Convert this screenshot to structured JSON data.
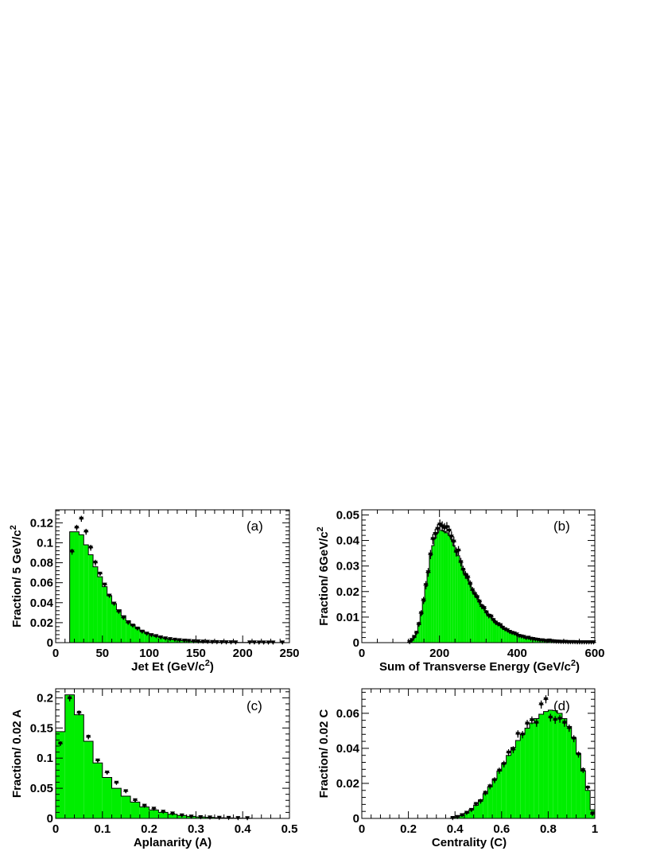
{
  "colors": {
    "histogram_fill": "#00ee00",
    "outline": "#000000",
    "marker": "#000000"
  },
  "chart_data": [
    {
      "id": "a",
      "type": "histogram",
      "panel_label": "(a)",
      "xlabel": "Jet Et (GeV/c",
      "xlabel_sup": "2",
      "xlabel_tail": ")",
      "ylabel": "Fraction/ 5 GeV/c",
      "ylabel_sup": "2",
      "xlim": [
        0,
        250
      ],
      "ylim": [
        0,
        0.133
      ],
      "xticks": [
        0,
        50,
        100,
        150,
        200,
        250
      ],
      "xtick_labels": [
        "0",
        "50",
        "100",
        "150",
        "200",
        "250"
      ],
      "yticks": [
        0,
        0.02,
        0.04,
        0.06,
        0.08,
        0.1,
        0.12
      ],
      "ytick_labels": [
        "0",
        "0.02",
        "0.04",
        "0.06",
        "0.08",
        "0.1",
        "0.12"
      ],
      "hist_edges": [
        15,
        20,
        25,
        30,
        35,
        40,
        45,
        50,
        55,
        60,
        65,
        70,
        75,
        80,
        85,
        90,
        95,
        100,
        105,
        110,
        115,
        120,
        125,
        130,
        135,
        140,
        145,
        150,
        155,
        160,
        165,
        170,
        175,
        180,
        185,
        190,
        195,
        200,
        205,
        210,
        215,
        220,
        225,
        230,
        235,
        240
      ],
      "hist_values": [
        0.111,
        0.111,
        0.108,
        0.098,
        0.088,
        0.076,
        0.066,
        0.056,
        0.047,
        0.039,
        0.033,
        0.027,
        0.022,
        0.018,
        0.015,
        0.012,
        0.0095,
        0.0078,
        0.0062,
        0.0051,
        0.0041,
        0.0034,
        0.0028,
        0.0023,
        0.0019,
        0.0016,
        0.0013,
        0.0011,
        0.0009,
        0.0008,
        0.0006,
        0.0005,
        0.0005,
        0.0004,
        0.0003,
        0.0003,
        0.0002,
        0.0002,
        0.0002,
        0.0001,
        0.0001,
        0.0001,
        0.0001,
        0.0001,
        0.0001
      ],
      "points_x": [
        17.5,
        22.5,
        27.5,
        32.5,
        37.5,
        42.5,
        47.5,
        52.5,
        57.5,
        62.5,
        67.5,
        72.5,
        77.5,
        82.5,
        87.5,
        92.5,
        97.5,
        102.5,
        107.5,
        112.5,
        117.5,
        122.5,
        127.5,
        132.5,
        137.5,
        142.5,
        147.5,
        152.5,
        157.5,
        162.5,
        167.5,
        172.5,
        177.5,
        182.5,
        187.5,
        192.5,
        207.5,
        212.5,
        217.5,
        222.5,
        227.5,
        232.5,
        242.5
      ],
      "points_y": [
        0.091,
        0.115,
        0.124,
        0.111,
        0.095,
        0.08,
        0.069,
        0.058,
        0.047,
        0.039,
        0.031,
        0.025,
        0.02,
        0.017,
        0.014,
        0.011,
        0.009,
        0.0075,
        0.0065,
        0.0052,
        0.0042,
        0.0035,
        0.0029,
        0.0024,
        0.002,
        0.0017,
        0.0014,
        0.0012,
        0.001,
        0.0008,
        0.0006,
        0.0005,
        0.0004,
        0.0003,
        0.0003,
        0.0002,
        0.0002,
        0.0002,
        0.0001,
        0.0001,
        0.0001,
        0.0001,
        0.0001
      ],
      "points_err": [
        0.003,
        0.003,
        0.003,
        0.003,
        0.003,
        0.003,
        0.002,
        0.002,
        0.002,
        0.002,
        0.002,
        0.002,
        0.002,
        0.001,
        0.001,
        0.001,
        0.001,
        0.001,
        0.001,
        0.001,
        0.001,
        0.001,
        0.001,
        0.001,
        0.001,
        0.001,
        0.001,
        0.001,
        0.001,
        0.001,
        0.001,
        0.001,
        0.001,
        0.001,
        0.001,
        0.001,
        0.001,
        0.001,
        0.001,
        0.001,
        0.001,
        0.001,
        0.001
      ]
    },
    {
      "id": "b",
      "type": "histogram",
      "panel_label": "(b)",
      "xlabel": "Sum of Transverse Energy (GeV/c",
      "xlabel_sup": "2",
      "xlabel_tail": ")",
      "ylabel": "Fraction/ 6GeV/c",
      "ylabel_sup": "2",
      "xlim": [
        0,
        600
      ],
      "ylim": [
        0,
        0.052
      ],
      "xticks": [
        0,
        200,
        400,
        600
      ],
      "xtick_labels": [
        "0",
        "200",
        "400",
        "600"
      ],
      "yticks": [
        0,
        0.01,
        0.02,
        0.03,
        0.04,
        0.05
      ],
      "ytick_labels": [
        "0",
        "0.01",
        "0.02",
        "0.03",
        "0.04",
        "0.05"
      ],
      "hist_edges": [
        120,
        126,
        132,
        138,
        144,
        150,
        156,
        162,
        168,
        174,
        180,
        186,
        192,
        198,
        204,
        210,
        216,
        222,
        228,
        234,
        240,
        246,
        252,
        258,
        264,
        270,
        276,
        282,
        288,
        294,
        300,
        306,
        312,
        318,
        324,
        330,
        336,
        342,
        348,
        354,
        360,
        366,
        372,
        378,
        384,
        390,
        396,
        402,
        408,
        414,
        420,
        426,
        432,
        438,
        444,
        450,
        456,
        462,
        468,
        474,
        480,
        486,
        492,
        498,
        504,
        510,
        516,
        522,
        528,
        534,
        540,
        546,
        552,
        558,
        564,
        570,
        576,
        582,
        588,
        594,
        600
      ],
      "hist_values": [
        0.0003,
        0.001,
        0.002,
        0.004,
        0.007,
        0.011,
        0.016,
        0.022,
        0.028,
        0.034,
        0.038,
        0.041,
        0.043,
        0.044,
        0.044,
        0.0435,
        0.043,
        0.042,
        0.0405,
        0.038,
        0.036,
        0.034,
        0.0315,
        0.029,
        0.027,
        0.025,
        0.0228,
        0.021,
        0.0192,
        0.0176,
        0.016,
        0.0146,
        0.0133,
        0.0121,
        0.011,
        0.01,
        0.009,
        0.0082,
        0.0074,
        0.0067,
        0.006,
        0.0054,
        0.0049,
        0.0044,
        0.0039,
        0.0035,
        0.0031,
        0.0028,
        0.0025,
        0.0022,
        0.002,
        0.0018,
        0.0016,
        0.0014,
        0.0013,
        0.0012,
        0.001,
        0.0009,
        0.0008,
        0.0007,
        0.0007,
        0.0006,
        0.0005,
        0.0005,
        0.0004,
        0.0004,
        0.0003,
        0.0003,
        0.0003,
        0.0002,
        0.0002,
        0.0002,
        0.0002,
        0.0001,
        0.0001,
        0.0001,
        0.0001,
        0.0001,
        0.0001,
        0.0001
      ],
      "points_x": [
        123,
        129,
        135,
        141,
        147,
        153,
        159,
        165,
        171,
        177,
        183,
        189,
        195,
        201,
        207,
        213,
        219,
        225,
        231,
        237,
        243,
        249,
        255,
        261,
        267,
        273,
        279,
        285,
        291,
        297,
        303,
        309,
        315,
        321,
        327,
        333,
        339,
        345,
        351,
        357,
        363,
        369,
        375,
        381,
        387,
        393,
        399,
        405,
        411,
        417,
        423,
        429,
        435,
        441,
        447,
        453,
        459,
        465,
        471,
        477,
        483,
        489,
        495,
        501,
        507,
        513,
        519,
        525,
        531,
        537,
        543,
        549,
        555,
        561,
        567,
        573,
        579,
        585,
        591,
        597
      ],
      "points_y": [
        0.0002,
        0.001,
        0.0022,
        0.0038,
        0.0072,
        0.0115,
        0.0165,
        0.0225,
        0.0275,
        0.0345,
        0.0405,
        0.0425,
        0.0445,
        0.0462,
        0.0455,
        0.0448,
        0.0452,
        0.0438,
        0.0415,
        0.0395,
        0.0355,
        0.036,
        0.0315,
        0.0285,
        0.0265,
        0.0255,
        0.023,
        0.0205,
        0.019,
        0.0178,
        0.016,
        0.0142,
        0.0135,
        0.0118,
        0.0105,
        0.0102,
        0.0088,
        0.0078,
        0.0072,
        0.0068,
        0.0058,
        0.0052,
        0.0048,
        0.0042,
        0.0038,
        0.0036,
        0.0032,
        0.0026,
        0.0024,
        0.0022,
        0.0018,
        0.0019,
        0.0015,
        0.0014,
        0.0012,
        0.0011,
        0.0009,
        0.0009,
        0.0007,
        0.0006,
        0.0008,
        0.0006,
        0.0005,
        0.0004,
        0.0004,
        0.0003,
        0.0003,
        0.0003,
        0.0002,
        0.0002,
        0.0002,
        0.0002,
        0.0001,
        0.0001,
        0.0001,
        0.0001,
        0.0001,
        0.0001,
        0.0001,
        0.0001
      ],
      "points_err": [
        0.0003,
        0.0005,
        0.0006,
        0.0008,
        0.001,
        0.0012,
        0.0014,
        0.0016,
        0.0017,
        0.0018,
        0.002,
        0.002,
        0.002,
        0.002,
        0.002,
        0.002,
        0.002,
        0.002,
        0.002,
        0.002,
        0.0018,
        0.0018,
        0.0017,
        0.0016,
        0.0015,
        0.0015,
        0.0014,
        0.0013,
        0.0013,
        0.0012,
        0.0012,
        0.0011,
        0.0011,
        0.001,
        0.001,
        0.001,
        0.0009,
        0.0009,
        0.0008,
        0.0008,
        0.0008,
        0.0007,
        0.0007,
        0.0007,
        0.0006,
        0.0006,
        0.0006,
        0.0005,
        0.0005,
        0.0005,
        0.0005,
        0.0005,
        0.0004,
        0.0004,
        0.0004,
        0.0004,
        0.0004,
        0.0004,
        0.0003,
        0.0003,
        0.0003,
        0.0003,
        0.0003,
        0.0003,
        0.0003,
        0.0003,
        0.0003,
        0.0003,
        0.0003,
        0.0003,
        0.0003,
        0.0003,
        0.0003,
        0.0003,
        0.0003,
        0.0003,
        0.0003,
        0.0003,
        0.0003,
        0.0003
      ]
    },
    {
      "id": "c",
      "type": "histogram",
      "panel_label": "(c)",
      "xlabel": "Aplanarity (A)",
      "xlabel_sup": "",
      "xlabel_tail": "",
      "ylabel": "Fraction/ 0.02 A",
      "ylabel_sup": "",
      "xlim": [
        0,
        0.5
      ],
      "ylim": [
        0,
        0.215
      ],
      "xticks": [
        0,
        0.1,
        0.2,
        0.3,
        0.4,
        0.5
      ],
      "xtick_labels": [
        "0",
        "0.1",
        "0.2",
        "0.3",
        "0.4",
        "0.5"
      ],
      "yticks": [
        0,
        0.05,
        0.1,
        0.15,
        0.2
      ],
      "ytick_labels": [
        "0",
        "0.05",
        "0.1",
        "0.15",
        "0.2"
      ],
      "hist_edges": [
        0,
        0.02,
        0.04,
        0.06,
        0.08,
        0.1,
        0.12,
        0.14,
        0.16,
        0.18,
        0.2,
        0.22,
        0.24,
        0.26,
        0.28,
        0.3,
        0.32,
        0.34,
        0.36,
        0.38,
        0.4,
        0.42
      ],
      "hist_values": [
        0.144,
        0.205,
        0.172,
        0.128,
        0.092,
        0.068,
        0.05,
        0.037,
        0.027,
        0.019,
        0.014,
        0.01,
        0.007,
        0.005,
        0.0035,
        0.0025,
        0.0018,
        0.0012,
        0.0008,
        0.0005,
        0.0003
      ],
      "points_x": [
        0.01,
        0.03,
        0.05,
        0.07,
        0.09,
        0.11,
        0.13,
        0.15,
        0.17,
        0.19,
        0.21,
        0.23,
        0.25,
        0.27,
        0.29,
        0.31,
        0.33,
        0.35,
        0.37,
        0.39,
        0.41
      ],
      "points_y": [
        0.124,
        0.199,
        0.175,
        0.135,
        0.096,
        0.076,
        0.059,
        0.045,
        0.03,
        0.021,
        0.016,
        0.011,
        0.008,
        0.005,
        0.003,
        0.002,
        0.0015,
        0.001,
        0.0008,
        0.0005,
        0.0003
      ],
      "points_err": [
        0.004,
        0.005,
        0.004,
        0.004,
        0.003,
        0.003,
        0.003,
        0.002,
        0.002,
        0.002,
        0.001,
        0.001,
        0.001,
        0.001,
        0.001,
        0.001,
        0.001,
        0.001,
        0.001,
        0.001,
        0.001
      ]
    },
    {
      "id": "d",
      "type": "histogram",
      "panel_label": "(d)",
      "xlabel": "Centrality (C)",
      "xlabel_sup": "",
      "xlabel_tail": "",
      "ylabel": "Fraction/ 0.02 C",
      "ylabel_sup": "",
      "xlim": [
        0,
        1
      ],
      "ylim": [
        0,
        0.074
      ],
      "xticks": [
        0,
        0.2,
        0.4,
        0.6,
        0.8,
        1
      ],
      "xtick_labels": [
        "0",
        "0.2",
        "0.4",
        "0.6",
        "0.8",
        "1"
      ],
      "yticks": [
        0,
        0.02,
        0.04,
        0.06
      ],
      "ytick_labels": [
        "0",
        "0.02",
        "0.04",
        "0.06"
      ],
      "hist_edges": [
        0.38,
        0.4,
        0.42,
        0.44,
        0.46,
        0.48,
        0.5,
        0.52,
        0.54,
        0.56,
        0.58,
        0.6,
        0.62,
        0.64,
        0.66,
        0.68,
        0.7,
        0.72,
        0.74,
        0.76,
        0.78,
        0.8,
        0.82,
        0.84,
        0.86,
        0.88,
        0.9,
        0.92,
        0.94,
        0.96,
        0.98,
        1.0
      ],
      "hist_values": [
        0.0003,
        0.0008,
        0.0016,
        0.003,
        0.005,
        0.0075,
        0.0105,
        0.014,
        0.018,
        0.0225,
        0.027,
        0.0315,
        0.036,
        0.0405,
        0.0445,
        0.048,
        0.0515,
        0.0545,
        0.057,
        0.0595,
        0.061,
        0.0618,
        0.0615,
        0.06,
        0.057,
        0.0525,
        0.046,
        0.037,
        0.027,
        0.016,
        0.005
      ],
      "points_x": [
        0.39,
        0.41,
        0.43,
        0.45,
        0.47,
        0.49,
        0.51,
        0.53,
        0.55,
        0.57,
        0.59,
        0.61,
        0.63,
        0.65,
        0.67,
        0.69,
        0.71,
        0.73,
        0.75,
        0.77,
        0.79,
        0.81,
        0.83,
        0.85,
        0.87,
        0.89,
        0.91,
        0.93,
        0.95,
        0.97,
        0.99
      ],
      "points_y": [
        0.0002,
        0.0008,
        0.0018,
        0.0032,
        0.0048,
        0.0082,
        0.0098,
        0.0145,
        0.0182,
        0.0218,
        0.0272,
        0.031,
        0.0375,
        0.0392,
        0.0482,
        0.0478,
        0.054,
        0.056,
        0.0545,
        0.065,
        0.068,
        0.0575,
        0.0562,
        0.0568,
        0.0545,
        0.0515,
        0.0455,
        0.0365,
        0.0275,
        0.0175,
        0.0025
      ],
      "points_err": [
        0.0003,
        0.0005,
        0.0007,
        0.0008,
        0.001,
        0.0012,
        0.0014,
        0.0015,
        0.0016,
        0.0017,
        0.0018,
        0.0019,
        0.002,
        0.002,
        0.0021,
        0.0021,
        0.0022,
        0.0022,
        0.0022,
        0.0023,
        0.0023,
        0.0022,
        0.0022,
        0.0022,
        0.0022,
        0.0021,
        0.002,
        0.0018,
        0.0016,
        0.0013,
        0.0008
      ]
    }
  ]
}
